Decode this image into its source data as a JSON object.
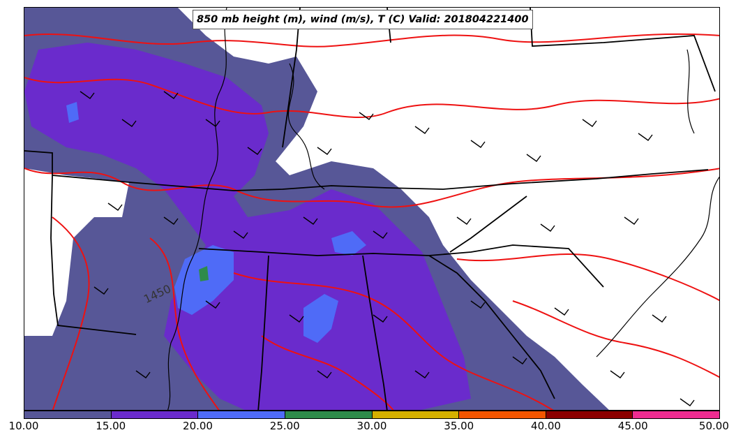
{
  "title": "850 mb height (m), wind (m/s), T (C) Valid: 201804221400",
  "contour_label": "1450",
  "colorbar": {
    "ticks": [
      "10.00",
      "15.00",
      "20.00",
      "25.00",
      "30.00",
      "35.00",
      "40.00",
      "45.00",
      "50.00"
    ],
    "colors": [
      "#575797",
      "#6a2bcc",
      "#4f6bf7",
      "#2e8b4a",
      "#d4b000",
      "#f25500",
      "#8b0000",
      "#ee2c90"
    ]
  },
  "colors": {
    "temperature_contour": "#ee1111",
    "boundaries": "#000000",
    "wind_barbs": "#000000",
    "background": "#ffffff"
  }
}
